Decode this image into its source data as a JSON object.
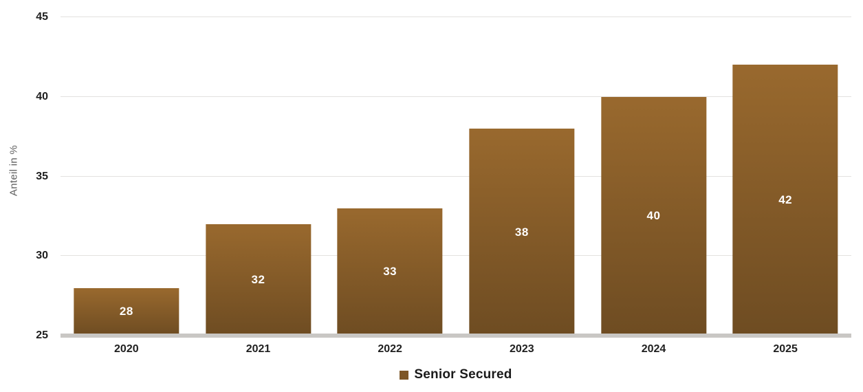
{
  "chart_data": {
    "type": "bar",
    "title": "",
    "categories": [
      "2020",
      "2021",
      "2022",
      "2023",
      "2024",
      "2025"
    ],
    "series": [
      {
        "name": "Senior Secured",
        "values": [
          28,
          32,
          33,
          38,
          40,
          42
        ]
      }
    ],
    "xlabel": "",
    "ylabel": "Anteil in %",
    "ylim": [
      25,
      45
    ],
    "yticks": [
      25,
      30,
      35,
      40,
      45
    ],
    "grid": true,
    "legend_position": "bottom-center",
    "bar_width_fraction": 0.8,
    "value_labels": "inside-center"
  },
  "colors": {
    "bar_gradient_top": "#99692e",
    "bar_gradient_bottom": "#6e4c22",
    "gridline": "#e3e1df",
    "baseline": "#c9c7c4",
    "tick_text": "#1f1f1f",
    "value_label_text": "#ffffff",
    "axis_label_text": "#5f5f5f",
    "legend_swatch": "#7d5626",
    "legend_text": "#1a1a1a",
    "background": "#ffffff"
  }
}
